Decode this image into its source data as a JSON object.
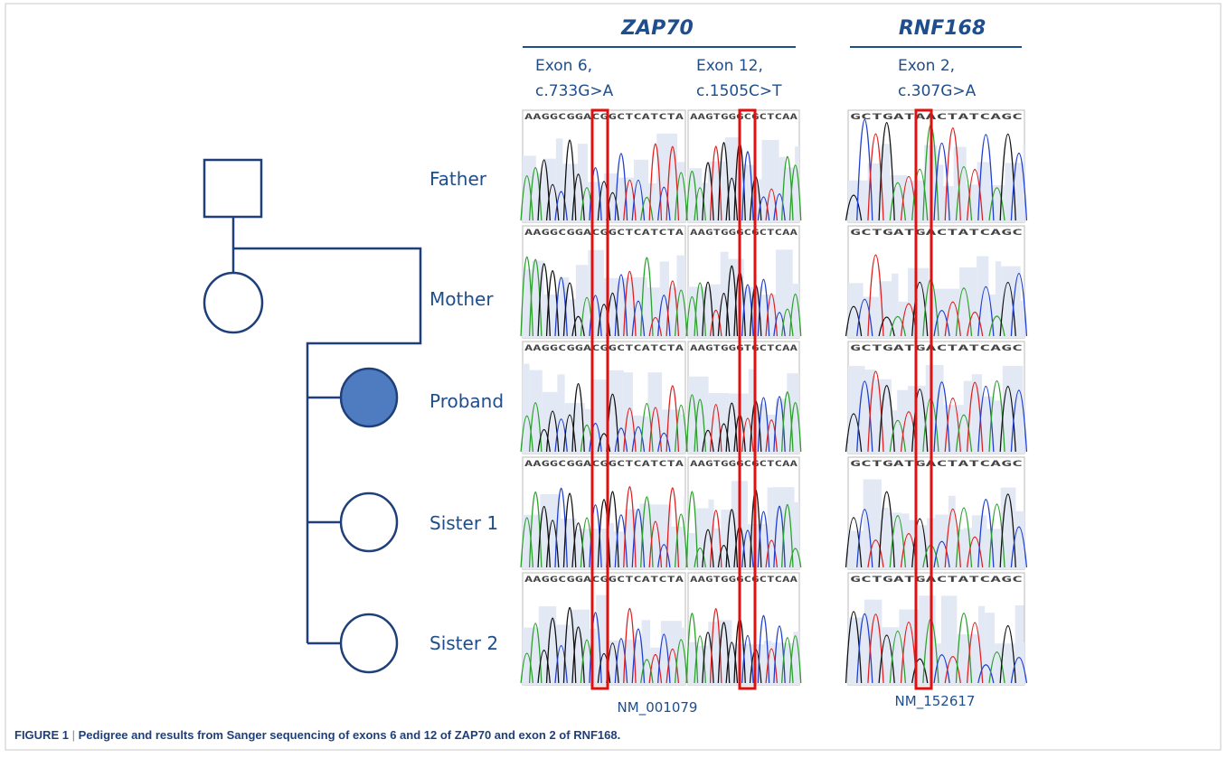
{
  "figure": {
    "genes": [
      {
        "name": "ZAP70",
        "transcript": "NM_001079",
        "exons": [
          {
            "label": [
              "Exon 6,",
              "c.733G>A"
            ],
            "sequences": [
              "AAGGCGGACGGCTCATCTA",
              "AAGGCGGACGGCTCATCTA",
              "AAGGCGGACGGCTCATCTA",
              "AAGGCGGACGGCTCATCTA",
              "AAGGCGGACGGCTCATCTA"
            ]
          },
          {
            "label": [
              "Exon 12,",
              "c.1505C>T"
            ],
            "sequences": [
              "AAGTGGGCGCTCAA",
              "AAGTGGGCGCTCAA",
              "AAGTGGGTGCTCAA",
              "AAGTGGGCGCTCAA",
              "AAGTGGGCGCTCAA"
            ]
          }
        ]
      },
      {
        "name": "RNF168",
        "transcript": "NM_152617",
        "exons": [
          {
            "label": [
              "Exon 2,",
              "c.307G>A"
            ],
            "sequences": [
              "GCTGATAACTATCAGC",
              "GCTGATGACTATCAGC",
              "GCTGATGACTATCAGC",
              "GCTGATGACTATCAGC",
              "GCTGATGACTATCAGC"
            ]
          }
        ]
      }
    ],
    "members": [
      "Father",
      "Mother",
      "Proband",
      "Sister 1",
      "Sister 2"
    ],
    "caption": {
      "label": "FIGURE 1",
      "separator": "|",
      "text": "Pedigree and results from Sanger sequencing of exons 6 and 12 of ZAP70 and exon 2 of RNF168."
    }
  }
}
